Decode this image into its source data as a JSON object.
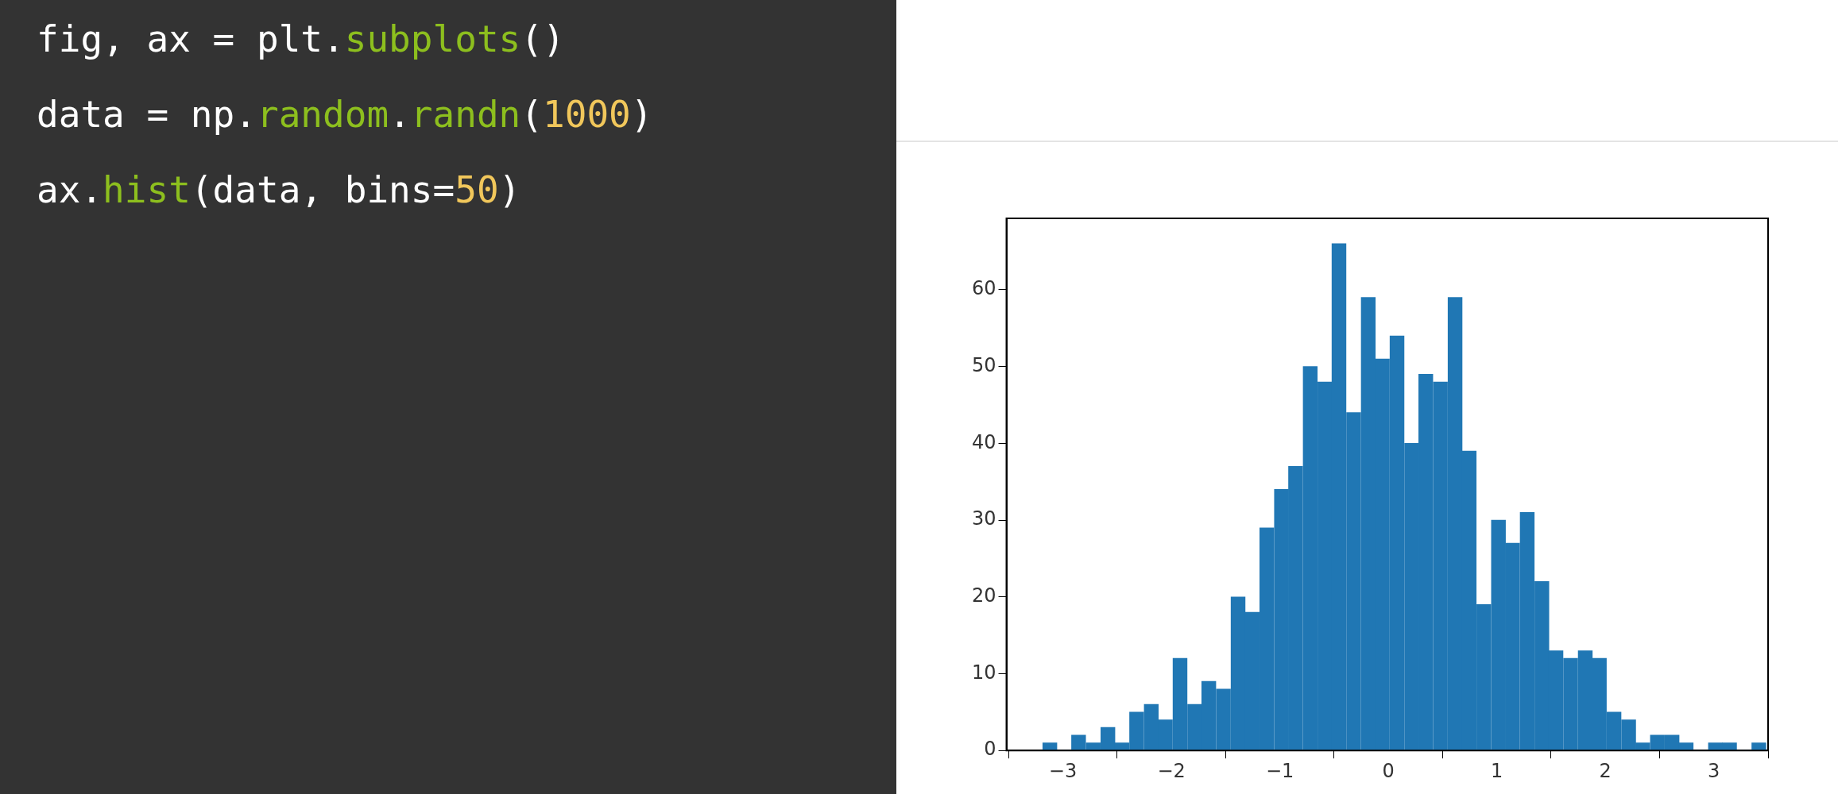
{
  "chart_data": {
    "type": "histogram",
    "annotations": [
      "fig, ax = plt.subplots()",
      "data = np.random.randn(1000)",
      "ax.hist(data, bins=50)"
    ],
    "bins": [
      -3.19,
      -3.05,
      -2.92,
      -2.79,
      -2.65,
      -2.52,
      -2.39,
      -2.25,
      -2.12,
      -1.99,
      -1.85,
      -1.72,
      -1.59,
      -1.45,
      -1.32,
      -1.19,
      -1.05,
      -0.92,
      -0.79,
      -0.65,
      -0.52,
      -0.39,
      -0.25,
      -0.12,
      0.01,
      0.15,
      0.28,
      0.41,
      0.55,
      0.68,
      0.81,
      0.95,
      1.08,
      1.21,
      1.35,
      1.48,
      1.61,
      1.75,
      1.88,
      2.01,
      2.15,
      2.28,
      2.41,
      2.55,
      2.68,
      2.81,
      2.95,
      3.08,
      3.21,
      3.35,
      3.48
    ],
    "values": [
      1,
      0,
      2,
      1,
      3,
      1,
      5,
      6,
      4,
      12,
      6,
      9,
      8,
      20,
      18,
      29,
      34,
      37,
      50,
      48,
      66,
      44,
      59,
      51,
      54,
      40,
      49,
      48,
      59,
      39,
      19,
      30,
      27,
      31,
      22,
      13,
      12,
      13,
      12,
      5,
      4,
      1,
      2,
      2,
      1,
      0,
      1,
      1,
      0,
      1
    ],
    "color": "#2077b4",
    "xlim": [
      -3.52,
      3.5
    ],
    "xticks": [
      -3,
      -2,
      -1,
      0,
      1,
      2,
      3
    ],
    "ylim": [
      0,
      69.3
    ],
    "yticks": [
      0,
      10,
      20,
      30,
      40,
      50,
      60
    ],
    "grid": false,
    "legend": false
  }
}
